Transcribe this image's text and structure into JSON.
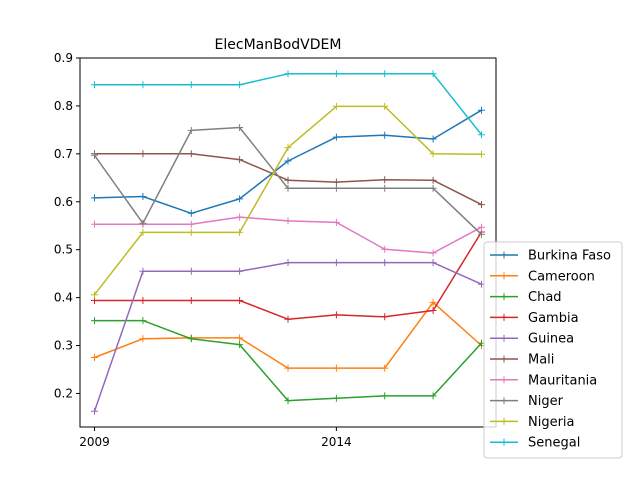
{
  "chart_data": {
    "type": "line",
    "title": "ElecManBodVDEM",
    "xlabel": "",
    "ylabel": "",
    "x": [
      2009,
      2010,
      2011,
      2012,
      2013,
      2014,
      2015,
      2016,
      2017
    ],
    "x_ticks": [
      2009,
      2014
    ],
    "xlim": [
      2008.7,
      2017.3
    ],
    "ylim": [
      0.13,
      0.9
    ],
    "y_ticks": [
      0.2,
      0.3,
      0.4,
      0.5,
      0.6,
      0.7,
      0.8,
      0.9
    ],
    "grid": false,
    "legend_position": "bottom-right, outside plot",
    "marker": "plus",
    "series": [
      {
        "name": "Burkina Faso",
        "color": "#1f77b4",
        "values": [
          0.608,
          0.611,
          0.576,
          0.606,
          0.685,
          0.735,
          0.739,
          0.731,
          0.791
        ]
      },
      {
        "name": "Cameroon",
        "color": "#ff7f0e",
        "values": [
          0.275,
          0.314,
          0.316,
          0.316,
          0.253,
          0.253,
          0.253,
          0.39,
          0.3
        ]
      },
      {
        "name": "Chad",
        "color": "#2ca02c",
        "values": [
          0.352,
          0.352,
          0.314,
          0.302,
          0.185,
          0.19,
          0.195,
          0.195,
          0.305
        ]
      },
      {
        "name": "Gambia",
        "color": "#d62728",
        "values": [
          0.394,
          0.394,
          0.394,
          0.394,
          0.355,
          0.364,
          0.36,
          0.373,
          0.537
        ]
      },
      {
        "name": "Guinea",
        "color": "#9467bd",
        "values": [
          0.163,
          0.455,
          0.455,
          0.455,
          0.473,
          0.473,
          0.473,
          0.473,
          0.428
        ]
      },
      {
        "name": "Mali",
        "color": "#8c564b",
        "values": [
          0.7,
          0.7,
          0.7,
          0.688,
          0.645,
          0.641,
          0.646,
          0.645,
          0.594
        ]
      },
      {
        "name": "Mauritania",
        "color": "#e377c2",
        "values": [
          0.553,
          0.553,
          0.553,
          0.568,
          0.56,
          0.557,
          0.501,
          0.493,
          0.547
        ]
      },
      {
        "name": "Niger",
        "color": "#7f7f7f",
        "values": [
          0.697,
          0.555,
          0.749,
          0.755,
          0.628,
          0.628,
          0.628,
          0.628,
          0.532
        ]
      },
      {
        "name": "Nigeria",
        "color": "#bcbd22",
        "values": [
          0.406,
          0.536,
          0.536,
          0.536,
          0.713,
          0.799,
          0.799,
          0.7,
          0.699
        ]
      },
      {
        "name": "Senegal",
        "color": "#17becf",
        "values": [
          0.844,
          0.844,
          0.844,
          0.844,
          0.867,
          0.867,
          0.867,
          0.867,
          0.74
        ]
      }
    ]
  }
}
